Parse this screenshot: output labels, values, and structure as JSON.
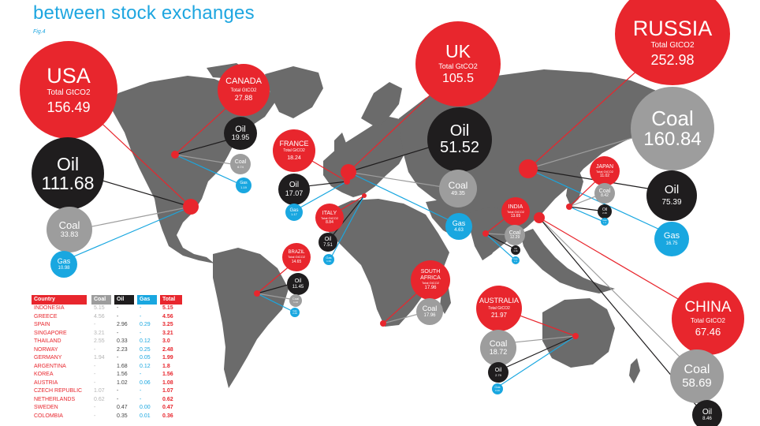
{
  "title": "between stock exchanges",
  "fig_label": "Fig.4",
  "colors": {
    "title": "#1ea6e0",
    "country_bubble": "#e8262d",
    "oil": "#1f1d1e",
    "coal": "#9d9d9d",
    "gas": "#19a7e0",
    "land": "#6b6b6b",
    "country_dot": "#e8262d"
  },
  "bubbles": {
    "usa": {
      "name": "USA",
      "sub": "Total GtCO2",
      "value": "156.49"
    },
    "usa_oil": {
      "name": "Oil",
      "value": "111.68"
    },
    "usa_coal": {
      "name": "Coal",
      "value": "33.83"
    },
    "usa_gas": {
      "name": "Gas",
      "value": "10.98"
    },
    "canada": {
      "name": "CANADA",
      "sub": "Total GtCO2",
      "value": "27.88"
    },
    "canada_oil": {
      "name": "Oil",
      "value": "19.95"
    },
    "canada_coal": {
      "name": "Coal",
      "value": "6.74"
    },
    "canada_gas": {
      "name": "Gas",
      "value": "1.19"
    },
    "uk": {
      "name": "UK",
      "sub": "Total GtCO2",
      "value": "105.5"
    },
    "uk_oil": {
      "name": "Oil",
      "value": "51.52"
    },
    "uk_coal": {
      "name": "Coal",
      "value": "49.35"
    },
    "uk_gas": {
      "name": "Gas",
      "value": "4.63"
    },
    "russia": {
      "name": "RUSSIA",
      "sub": "Total GtCO2",
      "value": "252.98"
    },
    "russia_coal": {
      "name": "Coal",
      "value": "160.84"
    },
    "russia_oil": {
      "name": "Oil",
      "value": "75.39"
    },
    "russia_gas": {
      "name": "Gas",
      "value": "16.75"
    },
    "france": {
      "name": "FRANCE",
      "sub": "Total GtCO2",
      "value": "18.24"
    },
    "france_oil": {
      "name": "Oil",
      "value": "17.07"
    },
    "france_gas": {
      "name": "Gas",
      "value": "1.17"
    },
    "italy": {
      "name": "ITALY",
      "sub": "Total GtCO2",
      "value": "8.84"
    },
    "italy_oil": {
      "name": "Oil",
      "value": "7.51"
    },
    "italy_gas": {
      "name": "Gas",
      "value": "1.33"
    },
    "brazil": {
      "name": "BRAZIL",
      "sub": "Total GtCO2",
      "value": "14.65"
    },
    "brazil_oil": {
      "name": "Oil",
      "value": "11.45"
    },
    "brazil_coal": {
      "name": "Coal",
      "value": "1.14"
    },
    "brazil_gas": {
      "name": "Gas",
      "value": "2.06"
    },
    "south_africa": {
      "name": "SOUTH AFRICA",
      "sub": "Total GtCO2",
      "value": "17.96"
    },
    "south_africa_coal": {
      "name": "Coal",
      "value": "17.96"
    },
    "india": {
      "name": "INDIA",
      "sub": "Total GtCO2",
      "value": "13.65"
    },
    "india_coal": {
      "name": "Coal",
      "value": "12.29"
    },
    "india_oil": {
      "name": "Oil",
      "value": "1.11"
    },
    "india_gas": {
      "name": "Gas",
      "value": "0.25"
    },
    "japan": {
      "name": "JAPAN",
      "sub": "Total GtCO2",
      "value": "11.02"
    },
    "japan_coal": {
      "name": "Coal",
      "value": "8.42"
    },
    "japan_oil": {
      "name": "Oil",
      "value": "2.46"
    },
    "japan_gas": {
      "name": "Gas",
      "value": "0.14"
    },
    "australia": {
      "name": "AUSTRALIA",
      "sub": "Total GtCO2",
      "value": "21.97"
    },
    "australia_coal": {
      "name": "Coal",
      "value": "18.72"
    },
    "australia_oil": {
      "name": "Oil",
      "value": "2.79"
    },
    "australia_gas": {
      "name": "Gas",
      "value": "0.46"
    },
    "china": {
      "name": "CHINA",
      "sub": "Total GtCO2",
      "value": "67.46"
    },
    "china_coal": {
      "name": "Coal",
      "value": "58.69"
    },
    "china_oil": {
      "name": "Oil",
      "value": "8.46"
    }
  },
  "table": {
    "headers": {
      "country": "Country",
      "coal": "Coal",
      "oil": "Oil",
      "gas": "Gas",
      "total": "Total"
    },
    "rows": [
      {
        "country": "Indonesia",
        "coal": "5.15",
        "oil": "-",
        "gas": "-",
        "total": "5.15"
      },
      {
        "country": "Greece",
        "coal": "4.56",
        "oil": "-",
        "gas": "-",
        "total": "4.56"
      },
      {
        "country": "Spain",
        "coal": "-",
        "oil": "2.96",
        "gas": "0.29",
        "total": "3.25"
      },
      {
        "country": "Singapore",
        "coal": "3.21",
        "oil": "-",
        "gas": "-",
        "total": "3.21"
      },
      {
        "country": "Thailand",
        "coal": "2.55",
        "oil": "0.33",
        "gas": "0.12",
        "total": "3.0"
      },
      {
        "country": "Norway",
        "coal": "-",
        "oil": "2.23",
        "gas": "0.25",
        "total": "2.48"
      },
      {
        "country": "Germany",
        "coal": "1.94",
        "oil": "-",
        "gas": "0.05",
        "total": "1.99"
      },
      {
        "country": "Argentina",
        "coal": "-",
        "oil": "1.68",
        "gas": "0.12",
        "total": "1.8"
      },
      {
        "country": "Korea",
        "coal": "-",
        "oil": "1.56",
        "gas": "-",
        "total": "1.56"
      },
      {
        "country": "Austria",
        "coal": "-",
        "oil": "1.02",
        "gas": "0.06",
        "total": "1.08"
      },
      {
        "country": "Czech Republic",
        "coal": "1.07",
        "oil": "-",
        "gas": "-",
        "total": "1.07"
      },
      {
        "country": "Netherlands",
        "coal": "0.62",
        "oil": "-",
        "gas": "-",
        "total": "0.62"
      },
      {
        "country": "Sweden",
        "coal": "-",
        "oil": "0.47",
        "gas": "0.00",
        "total": "0.47"
      },
      {
        "country": "Colombia",
        "coal": "-",
        "oil": "0.35",
        "gas": "0.01",
        "total": "0.36"
      }
    ]
  }
}
